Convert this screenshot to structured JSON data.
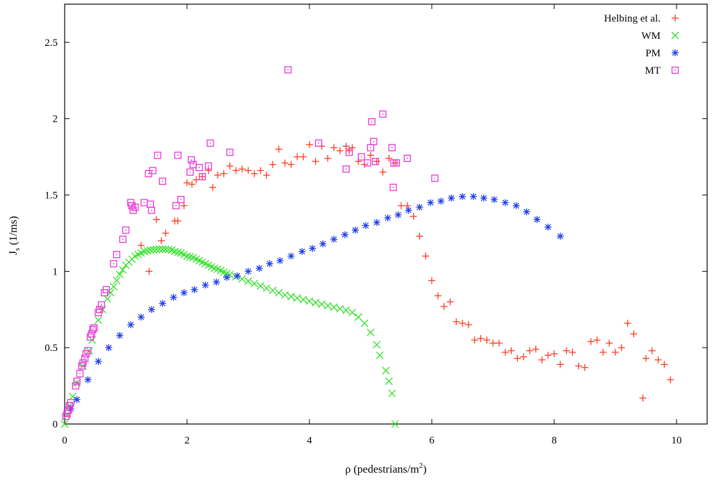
{
  "chart_data": {
    "type": "scatter",
    "title": "",
    "xlabel": "ρ (pedestrians/m",
    "xlabel_sup": "2",
    "xlabel_end": ")",
    "ylabel": "J",
    "ylabel_sub": "s",
    "ylabel_end": " (1/ms)",
    "xlim": [
      0,
      10.5
    ],
    "ylim": [
      0,
      2.75
    ],
    "xticks": [
      0,
      2,
      4,
      6,
      8,
      10
    ],
    "xtick_labels": [
      "0",
      "2",
      "4",
      "6",
      "8",
      "10"
    ],
    "yticks": [
      0,
      0.5,
      1,
      1.5,
      2,
      2.5
    ],
    "ytick_labels": [
      "0",
      "0.5",
      "1",
      "1.5",
      "2",
      "2.5"
    ],
    "grid": false,
    "legend_position": "top-right",
    "series": [
      {
        "name": "Helbing et al.",
        "marker": "plus",
        "color": "#ff3b1f",
        "points": [
          [
            1.25,
            1.17
          ],
          [
            1.38,
            1.0
          ],
          [
            1.5,
            1.34
          ],
          [
            1.58,
            1.2
          ],
          [
            1.65,
            1.25
          ],
          [
            1.8,
            1.33
          ],
          [
            1.85,
            1.33
          ],
          [
            1.95,
            1.43
          ],
          [
            2.0,
            1.58
          ],
          [
            2.08,
            1.57
          ],
          [
            2.15,
            1.6
          ],
          [
            2.25,
            1.62
          ],
          [
            2.35,
            1.66
          ],
          [
            2.42,
            1.55
          ],
          [
            2.5,
            1.63
          ],
          [
            2.6,
            1.64
          ],
          [
            2.7,
            1.69
          ],
          [
            2.8,
            1.66
          ],
          [
            2.9,
            1.67
          ],
          [
            3.0,
            1.66
          ],
          [
            3.1,
            1.64
          ],
          [
            3.2,
            1.66
          ],
          [
            3.3,
            1.63
          ],
          [
            3.4,
            1.7
          ],
          [
            3.5,
            1.8
          ],
          [
            3.6,
            1.71
          ],
          [
            3.7,
            1.7
          ],
          [
            3.8,
            1.75
          ],
          [
            3.9,
            1.75
          ],
          [
            4.0,
            1.83
          ],
          [
            4.1,
            1.72
          ],
          [
            4.2,
            1.82
          ],
          [
            4.3,
            1.74
          ],
          [
            4.4,
            1.81
          ],
          [
            4.5,
            1.79
          ],
          [
            4.6,
            1.82
          ],
          [
            4.65,
            1.79
          ],
          [
            4.7,
            1.81
          ],
          [
            4.8,
            1.72
          ],
          [
            4.9,
            1.7
          ],
          [
            5.0,
            1.76
          ],
          [
            5.1,
            1.72
          ],
          [
            5.2,
            1.65
          ],
          [
            5.3,
            1.74
          ],
          [
            5.4,
            1.71
          ],
          [
            5.5,
            1.43
          ],
          [
            5.6,
            1.43
          ],
          [
            5.7,
            1.36
          ],
          [
            5.8,
            1.23
          ],
          [
            5.9,
            1.1
          ],
          [
            6.0,
            0.94
          ],
          [
            6.1,
            0.84
          ],
          [
            6.2,
            0.77
          ],
          [
            6.3,
            0.8
          ],
          [
            6.4,
            0.67
          ],
          [
            6.5,
            0.66
          ],
          [
            6.6,
            0.65
          ],
          [
            6.7,
            0.55
          ],
          [
            6.8,
            0.56
          ],
          [
            6.9,
            0.55
          ],
          [
            7.0,
            0.53
          ],
          [
            7.1,
            0.53
          ],
          [
            7.2,
            0.47
          ],
          [
            7.3,
            0.48
          ],
          [
            7.4,
            0.43
          ],
          [
            7.5,
            0.44
          ],
          [
            7.6,
            0.48
          ],
          [
            7.7,
            0.49
          ],
          [
            7.8,
            0.42
          ],
          [
            7.9,
            0.45
          ],
          [
            8.0,
            0.46
          ],
          [
            8.1,
            0.39
          ],
          [
            8.2,
            0.48
          ],
          [
            8.3,
            0.47
          ],
          [
            8.4,
            0.38
          ],
          [
            8.5,
            0.37
          ],
          [
            8.6,
            0.54
          ],
          [
            8.7,
            0.55
          ],
          [
            8.8,
            0.47
          ],
          [
            8.9,
            0.53
          ],
          [
            9.0,
            0.47
          ],
          [
            9.1,
            0.5
          ],
          [
            9.2,
            0.66
          ],
          [
            9.3,
            0.59
          ],
          [
            9.45,
            0.17
          ],
          [
            9.5,
            0.43
          ],
          [
            9.6,
            0.48
          ],
          [
            9.7,
            0.42
          ],
          [
            9.8,
            0.39
          ],
          [
            9.9,
            0.29
          ]
        ]
      },
      {
        "name": "WM",
        "marker": "x",
        "color": "#33e02a",
        "points": [
          [
            0.0,
            0.0
          ],
          [
            0.04,
            0.06
          ],
          [
            0.08,
            0.12
          ],
          [
            0.13,
            0.18
          ],
          [
            0.2,
            0.27
          ],
          [
            0.3,
            0.38
          ],
          [
            0.4,
            0.48
          ],
          [
            0.45,
            0.55
          ],
          [
            0.55,
            0.68
          ],
          [
            0.62,
            0.75
          ],
          [
            0.7,
            0.82
          ],
          [
            0.75,
            0.86
          ],
          [
            0.8,
            0.9
          ],
          [
            0.85,
            0.94
          ],
          [
            0.9,
            0.98
          ],
          [
            0.95,
            1.01
          ],
          [
            1.0,
            1.04
          ],
          [
            1.05,
            1.06
          ],
          [
            1.1,
            1.08
          ],
          [
            1.15,
            1.1
          ],
          [
            1.2,
            1.11
          ],
          [
            1.25,
            1.12
          ],
          [
            1.3,
            1.13
          ],
          [
            1.35,
            1.135
          ],
          [
            1.4,
            1.14
          ],
          [
            1.45,
            1.142
          ],
          [
            1.5,
            1.144
          ],
          [
            1.55,
            1.145
          ],
          [
            1.6,
            1.145
          ],
          [
            1.65,
            1.144
          ],
          [
            1.7,
            1.142
          ],
          [
            1.75,
            1.14
          ],
          [
            1.8,
            1.13
          ],
          [
            1.85,
            1.125
          ],
          [
            1.9,
            1.12
          ],
          [
            1.95,
            1.11
          ],
          [
            2.0,
            1.1
          ],
          [
            2.05,
            1.095
          ],
          [
            2.1,
            1.09
          ],
          [
            2.15,
            1.08
          ],
          [
            2.2,
            1.07
          ],
          [
            2.25,
            1.06
          ],
          [
            2.3,
            1.05
          ],
          [
            2.35,
            1.04
          ],
          [
            2.4,
            1.03
          ],
          [
            2.45,
            1.02
          ],
          [
            2.5,
            1.015
          ],
          [
            2.55,
            1.005
          ],
          [
            2.6,
            0.995
          ],
          [
            2.65,
            0.985
          ],
          [
            2.7,
            0.978
          ],
          [
            2.8,
            0.965
          ],
          [
            2.9,
            0.95
          ],
          [
            3.0,
            0.935
          ],
          [
            3.1,
            0.92
          ],
          [
            3.2,
            0.905
          ],
          [
            3.3,
            0.89
          ],
          [
            3.4,
            0.875
          ],
          [
            3.5,
            0.86
          ],
          [
            3.6,
            0.845
          ],
          [
            3.7,
            0.835
          ],
          [
            3.8,
            0.825
          ],
          [
            3.9,
            0.815
          ],
          [
            4.0,
            0.805
          ],
          [
            4.1,
            0.795
          ],
          [
            4.2,
            0.785
          ],
          [
            4.3,
            0.775
          ],
          [
            4.4,
            0.765
          ],
          [
            4.5,
            0.755
          ],
          [
            4.6,
            0.745
          ],
          [
            4.7,
            0.73
          ],
          [
            4.8,
            0.7
          ],
          [
            4.9,
            0.66
          ],
          [
            5.0,
            0.6
          ],
          [
            5.1,
            0.52
          ],
          [
            5.15,
            0.45
          ],
          [
            5.25,
            0.35
          ],
          [
            5.3,
            0.28
          ],
          [
            5.35,
            0.2
          ],
          [
            5.4,
            0.0
          ]
        ]
      },
      {
        "name": "PM",
        "marker": "star",
        "color": "#1f3fe8",
        "points": [
          [
            0.1,
            0.1
          ],
          [
            0.2,
            0.16
          ],
          [
            0.38,
            0.29
          ],
          [
            0.55,
            0.41
          ],
          [
            0.72,
            0.5
          ],
          [
            0.9,
            0.58
          ],
          [
            1.08,
            0.65
          ],
          [
            1.25,
            0.7
          ],
          [
            1.42,
            0.75
          ],
          [
            1.6,
            0.79
          ],
          [
            1.78,
            0.83
          ],
          [
            1.95,
            0.86
          ],
          [
            2.12,
            0.88
          ],
          [
            2.3,
            0.91
          ],
          [
            2.48,
            0.93
          ],
          [
            2.65,
            0.96
          ],
          [
            2.82,
            0.97
          ],
          [
            3.0,
            1.0
          ],
          [
            3.18,
            1.02
          ],
          [
            3.35,
            1.05
          ],
          [
            3.52,
            1.07
          ],
          [
            3.7,
            1.1
          ],
          [
            3.88,
            1.13
          ],
          [
            4.05,
            1.15
          ],
          [
            4.22,
            1.18
          ],
          [
            4.4,
            1.21
          ],
          [
            4.58,
            1.24
          ],
          [
            4.75,
            1.27
          ],
          [
            4.92,
            1.3
          ],
          [
            5.1,
            1.32
          ],
          [
            5.28,
            1.35
          ],
          [
            5.45,
            1.37
          ],
          [
            5.62,
            1.4
          ],
          [
            5.8,
            1.42
          ],
          [
            5.98,
            1.45
          ],
          [
            6.15,
            1.46
          ],
          [
            6.32,
            1.48
          ],
          [
            6.5,
            1.49
          ],
          [
            6.68,
            1.49
          ],
          [
            6.85,
            1.48
          ],
          [
            7.02,
            1.47
          ],
          [
            7.2,
            1.45
          ],
          [
            7.38,
            1.43
          ],
          [
            7.55,
            1.39
          ],
          [
            7.72,
            1.34
          ],
          [
            7.9,
            1.29
          ],
          [
            8.1,
            1.23
          ]
        ]
      },
      {
        "name": "MT",
        "marker": "dotted-square",
        "color": "#e637d6",
        "points": [
          [
            0.02,
            0.05
          ],
          [
            0.04,
            0.07
          ],
          [
            0.06,
            0.09
          ],
          [
            0.08,
            0.12
          ],
          [
            0.1,
            0.14
          ],
          [
            0.18,
            0.25
          ],
          [
            0.2,
            0.28
          ],
          [
            0.25,
            0.33
          ],
          [
            0.28,
            0.38
          ],
          [
            0.3,
            0.4
          ],
          [
            0.33,
            0.43
          ],
          [
            0.35,
            0.46
          ],
          [
            0.38,
            0.48
          ],
          [
            0.42,
            0.57
          ],
          [
            0.44,
            0.59
          ],
          [
            0.46,
            0.62
          ],
          [
            0.48,
            0.63
          ],
          [
            0.55,
            0.73
          ],
          [
            0.57,
            0.75
          ],
          [
            0.6,
            0.78
          ],
          [
            0.65,
            0.86
          ],
          [
            0.68,
            0.88
          ],
          [
            0.8,
            1.05
          ],
          [
            0.85,
            1.11
          ],
          [
            0.95,
            1.21
          ],
          [
            1.0,
            1.27
          ],
          [
            1.08,
            1.45
          ],
          [
            1.1,
            1.43
          ],
          [
            1.12,
            1.4
          ],
          [
            1.15,
            1.42
          ],
          [
            1.3,
            1.45
          ],
          [
            1.37,
            1.64
          ],
          [
            1.4,
            1.44
          ],
          [
            1.42,
            1.4
          ],
          [
            1.44,
            1.66
          ],
          [
            1.52,
            1.76
          ],
          [
            1.6,
            1.59
          ],
          [
            1.82,
            1.43
          ],
          [
            1.85,
            1.76
          ],
          [
            1.9,
            1.47
          ],
          [
            2.05,
            1.65
          ],
          [
            2.07,
            1.73
          ],
          [
            2.1,
            1.7
          ],
          [
            2.2,
            1.68
          ],
          [
            2.25,
            1.62
          ],
          [
            2.35,
            1.69
          ],
          [
            2.38,
            1.84
          ],
          [
            2.7,
            1.78
          ],
          [
            3.65,
            2.32
          ],
          [
            4.15,
            1.84
          ],
          [
            4.6,
            1.67
          ],
          [
            4.65,
            1.78
          ],
          [
            4.85,
            1.75
          ],
          [
            4.95,
            1.71
          ],
          [
            5.0,
            1.81
          ],
          [
            5.02,
            1.98
          ],
          [
            5.05,
            1.85
          ],
          [
            5.08,
            1.72
          ],
          [
            5.2,
            2.03
          ],
          [
            5.35,
            1.81
          ],
          [
            5.37,
            1.55
          ],
          [
            5.38,
            1.71
          ],
          [
            5.42,
            1.71
          ],
          [
            5.6,
            1.74
          ],
          [
            6.05,
            1.61
          ]
        ]
      }
    ]
  }
}
